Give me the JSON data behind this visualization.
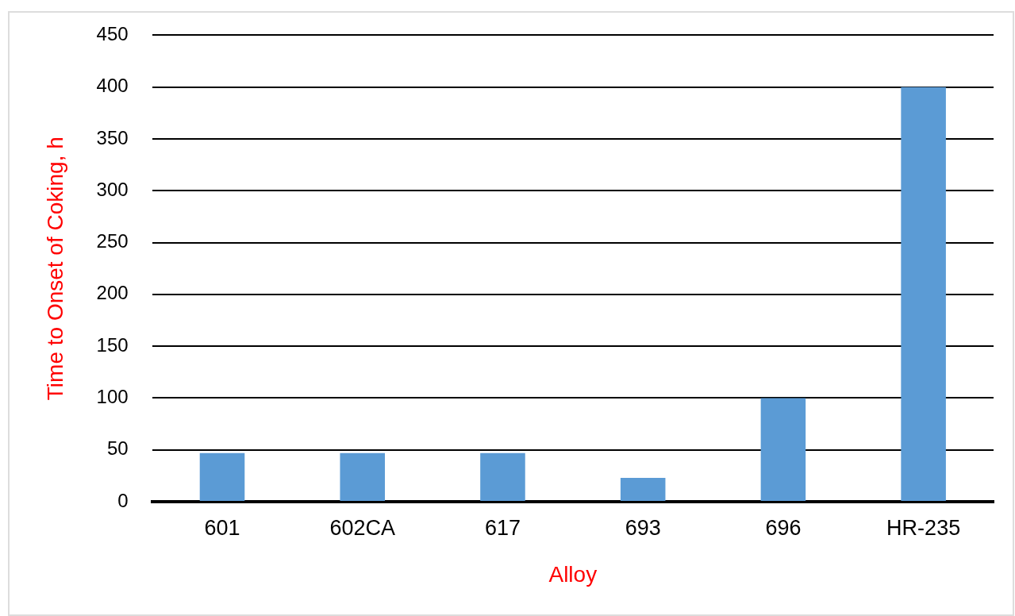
{
  "chart_data": {
    "type": "bar",
    "xlabel": "Alloy",
    "ylabel": "Time to Onset of Coking, h",
    "categories": [
      "601",
      "602CA",
      "617",
      "693",
      "696",
      "HR-235"
    ],
    "values": [
      47,
      47,
      47,
      23,
      100,
      400
    ],
    "color": "#5b9bd5",
    "ylim": [
      0,
      450
    ],
    "yticks": [
      0,
      50,
      100,
      150,
      200,
      250,
      300,
      350,
      400,
      450
    ],
    "grid": "y"
  }
}
